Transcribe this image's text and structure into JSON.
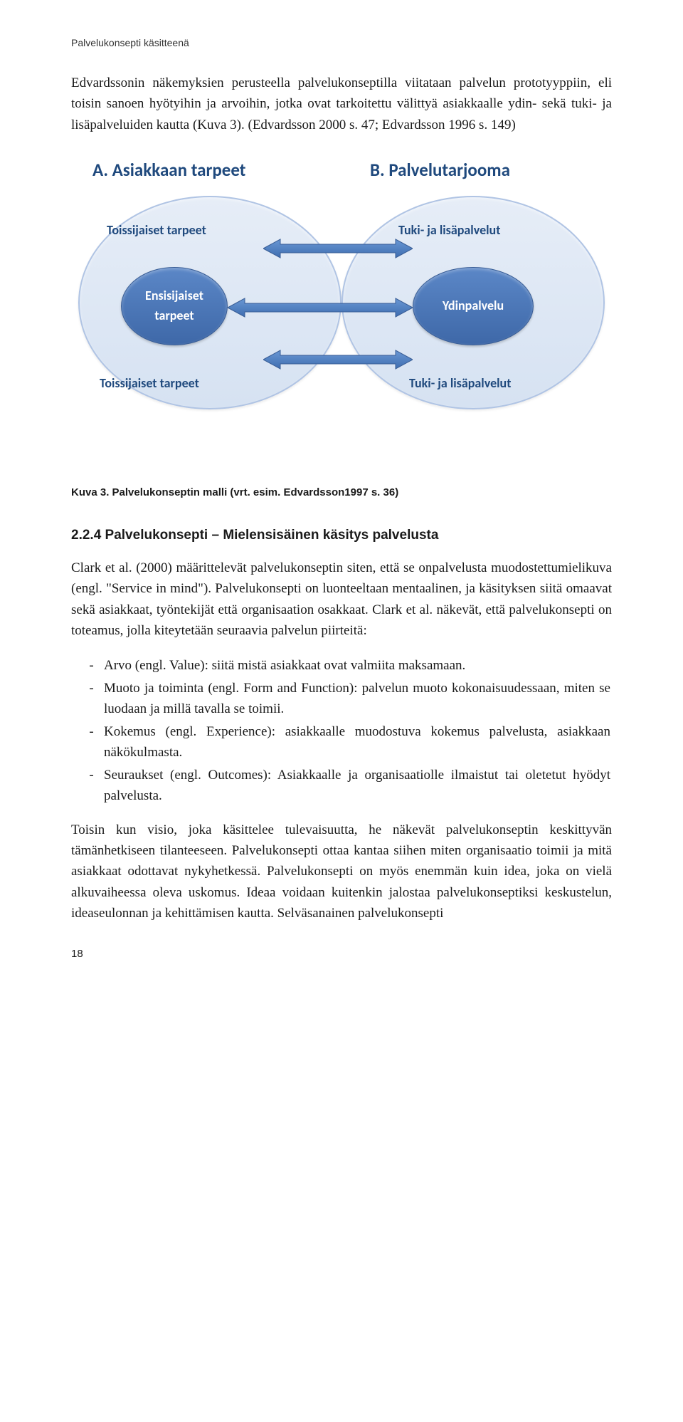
{
  "running_head": "Palvelukonsepti käsitteenä",
  "intro_para": "Edvardssonin näkemyksien perusteella palvelukonseptilla viitataan palvelun prototyyppiin, eli toisin sanoen hyötyihin ja arvoihin, jotka ovat tarkoitettu välittyä asiakkaalle ydin- sekä tuki- ja lisäpalveluiden kautta (Kuva 3). (Edvardsson 2000 s. 47; Edvardsson 1996 s. 149)",
  "diagram": {
    "colors": {
      "title": "#1f497d",
      "ellipse_fill_top": "#e6edf7",
      "ellipse_fill_bot": "#d6e2f2",
      "ellipse_border": "#b0c4e4",
      "node_fill_top": "#5b87c7",
      "node_fill_bot": "#3e68a8",
      "node_border": "#3a5e96",
      "node_text": "#ffffff",
      "label_text": "#1f497d",
      "arrow": "#4f81bd"
    },
    "title_a": "A. Asiakkaan tarpeet",
    "title_b": "B. Palvelutarjooma",
    "left": {
      "top_label": "Toissijaiset tarpeet",
      "node": "Ensisijaiset\ntarpeet",
      "bottom_label": "Toissijaiset tarpeet"
    },
    "right": {
      "top_label": "Tuki- ja lisäpalvelut",
      "node": "Ydinpalvelu",
      "bottom_label": "Tuki- ja lisäpalvelut"
    }
  },
  "caption": "Kuva 3. Palvelukonseptin malli (vrt. esim. Edvardsson1997 s. 36)",
  "subsection_title": "2.2.4  Palvelukonsepti – Mielensisäinen käsitys palvelusta",
  "para2": "Clark et al. (2000) määrittelevät palvelukonseptin siten, että se onpalvelusta muodostettumielikuva (engl. \"Service in mind\"). Palvelukonsepti on luonteeltaan mentaalinen, ja käsityksen siitä omaavat sekä asiakkaat, työntekijät että organisaation osakkaat. Clark et al. näkevät, että palvelukonsepti on toteamus, jolla kiteytetään seuraavia palvelun piirteitä:",
  "bullets": [
    "Arvo (engl. Value): siitä mistä asiakkaat ovat valmiita maksamaan.",
    "Muoto ja toiminta (engl. Form and Function): palvelun muoto kokonaisuudessaan, miten se luodaan ja millä tavalla se toimii.",
    "Kokemus (engl. Experience): asiakkaalle muodostuva kokemus palvelusta, asiakkaan näkökulmasta.",
    "Seuraukset (engl. Outcomes): Asiakkaalle ja organisaatiolle ilmaistut tai oletetut hyödyt palvelusta."
  ],
  "para3": "Toisin kun visio, joka käsittelee tulevaisuutta, he näkevät palvelukonseptin keskittyvän tämänhetkiseen tilanteeseen. Palvelukonsepti ottaa kantaa siihen miten organisaatio toimii ja mitä asiakkaat odottavat nykyhetkessä. Palvelukonsepti on myös enemmän kuin idea, joka on vielä alkuvaiheessa oleva uskomus. Ideaa voidaan kuitenkin jalostaa palvelukonseptiksi keskustelun, ideaseulonnan ja kehittämisen kautta. Selväsanainen palvelukonsepti",
  "page_number": "18"
}
